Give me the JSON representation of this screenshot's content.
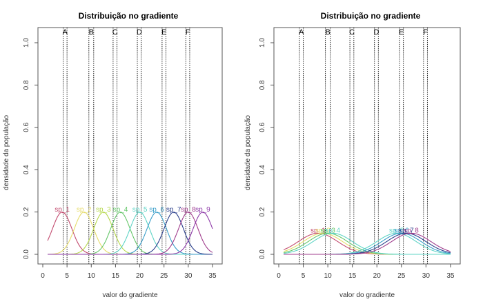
{
  "chart_data": [
    {
      "type": "line",
      "title": "Distribuição no gradiente",
      "xlabel": "valor do gradiente",
      "ylabel": "densidade da população",
      "xlim": [
        0,
        36
      ],
      "ylim": [
        0,
        1.0
      ],
      "x_ticks": [
        "0",
        "5",
        "10",
        "15",
        "20",
        "25",
        "30",
        "35"
      ],
      "y_ticks": [
        "0.0",
        "0.2",
        "0.4",
        "0.6",
        "0.8",
        "1.0"
      ],
      "sites": [
        {
          "label": "A",
          "x_range": [
            4.2,
            5.0
          ]
        },
        {
          "label": "B",
          "x_range": [
            9.5,
            10.5
          ]
        },
        {
          "label": "C",
          "x_range": [
            14.5,
            15.3
          ]
        },
        {
          "label": "D",
          "x_range": [
            19.5,
            20.3
          ]
        },
        {
          "label": "E",
          "x_range": [
            24.6,
            25.4
          ]
        },
        {
          "label": "F",
          "x_range": [
            29.5,
            30.3
          ]
        }
      ],
      "curve_x_range": [
        1,
        35
      ],
      "series": [
        {
          "name": "sp_1",
          "mean": 4.0,
          "sd": 2.0,
          "color": "#c24a6e"
        },
        {
          "name": "sp_2",
          "mean": 8.5,
          "sd": 2.0,
          "color": "#e6dc6a"
        },
        {
          "name": "sp_3",
          "mean": 12.5,
          "sd": 2.0,
          "color": "#b6d84c"
        },
        {
          "name": "sp_4",
          "mean": 16.0,
          "sd": 2.0,
          "color": "#66c76a"
        },
        {
          "name": "sp_5",
          "mean": 20.0,
          "sd": 2.0,
          "color": "#5fd4c6"
        },
        {
          "name": "sp_6",
          "mean": 23.5,
          "sd": 2.0,
          "color": "#3a9ec9"
        },
        {
          "name": "sp_7",
          "mean": 27.0,
          "sd": 2.0,
          "color": "#2b3f8c"
        },
        {
          "name": "sp_8",
          "mean": 30.0,
          "sd": 2.0,
          "color": "#a03c8c"
        },
        {
          "name": "sp_9",
          "mean": 33.0,
          "sd": 2.0,
          "color": "#8e3aa8"
        }
      ]
    },
    {
      "type": "line",
      "title": "Distribuição no gradiente",
      "xlabel": "valor do gradiente",
      "ylabel": "densidade da população",
      "xlim": [
        0,
        36
      ],
      "ylim": [
        0,
        1.0
      ],
      "x_ticks": [
        "0",
        "5",
        "10",
        "15",
        "20",
        "25",
        "30",
        "35"
      ],
      "y_ticks": [
        "0.0",
        "0.2",
        "0.4",
        "0.6",
        "0.8",
        "1.0"
      ],
      "sites": [
        {
          "label": "A",
          "x_range": [
            4.2,
            5.0
          ]
        },
        {
          "label": "B",
          "x_range": [
            9.5,
            10.5
          ]
        },
        {
          "label": "C",
          "x_range": [
            14.5,
            15.3
          ]
        },
        {
          "label": "D",
          "x_range": [
            19.5,
            20.3
          ]
        },
        {
          "label": "E",
          "x_range": [
            24.6,
            25.4
          ]
        },
        {
          "label": "F",
          "x_range": [
            29.5,
            30.3
          ]
        }
      ],
      "curve_x_range": [
        1,
        35
      ],
      "series": [
        {
          "name": "sp_1",
          "mean": 8.0,
          "sd": 4.0,
          "color": "#c24a6e"
        },
        {
          "name": "sp_2",
          "mean": 9.0,
          "sd": 4.0,
          "color": "#e6dc6a"
        },
        {
          "name": "sp_3",
          "mean": 10.0,
          "sd": 4.0,
          "color": "#66c76a"
        },
        {
          "name": "sp_4",
          "mean": 11.0,
          "sd": 4.0,
          "color": "#5fd4c6"
        },
        {
          "name": "sp_5",
          "mean": 24.0,
          "sd": 4.0,
          "color": "#5fd4c6"
        },
        {
          "name": "sp_6",
          "mean": 25.0,
          "sd": 4.0,
          "color": "#3a9ec9"
        },
        {
          "name": "sp_7",
          "mean": 26.0,
          "sd": 4.0,
          "color": "#2b3f8c"
        },
        {
          "name": "sp_8",
          "mean": 27.0,
          "sd": 4.0,
          "color": "#a03c8c"
        }
      ]
    }
  ]
}
